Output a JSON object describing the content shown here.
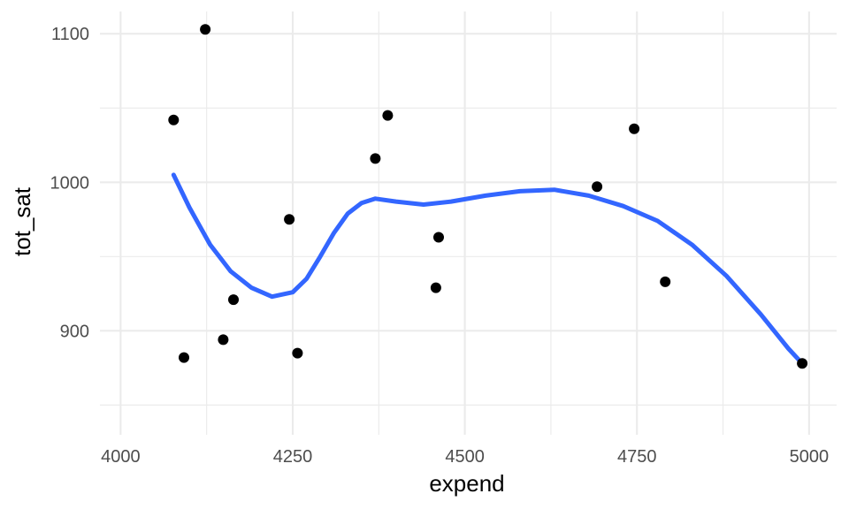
{
  "chart_data": {
    "type": "scatter",
    "xlabel": "expend",
    "ylabel": "tot_sat",
    "xlim": [
      3970,
      5040
    ],
    "ylim": [
      830,
      1115
    ],
    "x_ticks": [
      4000,
      4250,
      4500,
      4750,
      5000
    ],
    "y_ticks": [
      900,
      1000,
      1100
    ],
    "x_tick_labels": [
      "4000",
      "4250",
      "4500",
      "4750",
      "5000"
    ],
    "y_tick_labels": [
      "900",
      "1000",
      "1100"
    ],
    "grid": true,
    "points": [
      {
        "x": 4077,
        "y": 1042
      },
      {
        "x": 4123,
        "y": 1103
      },
      {
        "x": 4092,
        "y": 882
      },
      {
        "x": 4149,
        "y": 894
      },
      {
        "x": 4164,
        "y": 921
      },
      {
        "x": 4245,
        "y": 975
      },
      {
        "x": 4257,
        "y": 885
      },
      {
        "x": 4370,
        "y": 1016
      },
      {
        "x": 4388,
        "y": 1045
      },
      {
        "x": 4458,
        "y": 929
      },
      {
        "x": 4462,
        "y": 963
      },
      {
        "x": 4692,
        "y": 997
      },
      {
        "x": 4746,
        "y": 1036
      },
      {
        "x": 4791,
        "y": 933
      },
      {
        "x": 4990,
        "y": 878
      }
    ],
    "smooth_color": "#3366ff",
    "point_color": "#000000",
    "smooth": [
      {
        "x": 4077,
        "y": 1005
      },
      {
        "x": 4100,
        "y": 983
      },
      {
        "x": 4130,
        "y": 958
      },
      {
        "x": 4160,
        "y": 940
      },
      {
        "x": 4190,
        "y": 929
      },
      {
        "x": 4220,
        "y": 923
      },
      {
        "x": 4250,
        "y": 926
      },
      {
        "x": 4270,
        "y": 935
      },
      {
        "x": 4290,
        "y": 950
      },
      {
        "x": 4310,
        "y": 966
      },
      {
        "x": 4330,
        "y": 979
      },
      {
        "x": 4350,
        "y": 986
      },
      {
        "x": 4370,
        "y": 989
      },
      {
        "x": 4400,
        "y": 987
      },
      {
        "x": 4440,
        "y": 985
      },
      {
        "x": 4480,
        "y": 987
      },
      {
        "x": 4530,
        "y": 991
      },
      {
        "x": 4580,
        "y": 994
      },
      {
        "x": 4630,
        "y": 995
      },
      {
        "x": 4680,
        "y": 991
      },
      {
        "x": 4730,
        "y": 984
      },
      {
        "x": 4780,
        "y": 974
      },
      {
        "x": 4830,
        "y": 958
      },
      {
        "x": 4880,
        "y": 937
      },
      {
        "x": 4930,
        "y": 911
      },
      {
        "x": 4970,
        "y": 888
      },
      {
        "x": 4990,
        "y": 878
      }
    ]
  }
}
